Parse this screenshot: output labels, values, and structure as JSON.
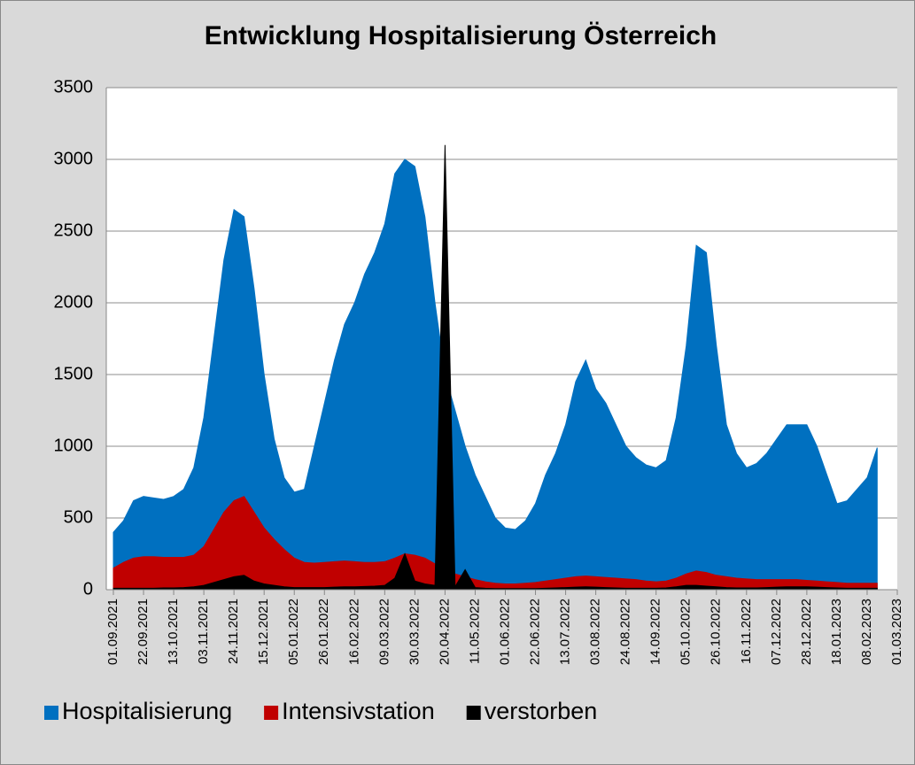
{
  "chart_data": {
    "type": "area",
    "title": "Entwicklung Hospitalisierung Österreich",
    "x": [
      "01.09.2021",
      "08.09.2021",
      "15.09.2021",
      "22.09.2021",
      "29.09.2021",
      "06.10.2021",
      "13.10.2021",
      "20.10.2021",
      "27.10.2021",
      "03.11.2021",
      "10.11.2021",
      "17.11.2021",
      "24.11.2021",
      "01.12.2021",
      "08.12.2021",
      "15.12.2021",
      "22.12.2021",
      "29.12.2021",
      "05.01.2022",
      "12.01.2022",
      "19.01.2022",
      "26.01.2022",
      "02.02.2022",
      "09.02.2022",
      "16.02.2022",
      "23.02.2022",
      "02.03.2022",
      "09.03.2022",
      "16.03.2022",
      "23.03.2022",
      "30.03.2022",
      "06.04.2022",
      "13.04.2022",
      "20.04.2022",
      "27.04.2022",
      "04.05.2022",
      "11.05.2022",
      "18.05.2022",
      "25.05.2022",
      "01.06.2022",
      "08.06.2022",
      "15.06.2022",
      "22.06.2022",
      "29.06.2022",
      "06.07.2022",
      "13.07.2022",
      "20.07.2022",
      "27.07.2022",
      "03.08.2022",
      "10.08.2022",
      "17.08.2022",
      "24.08.2022",
      "31.08.2022",
      "07.09.2022",
      "14.09.2022",
      "21.09.2022",
      "28.09.2022",
      "05.10.2022",
      "12.10.2022",
      "19.10.2022",
      "26.10.2022",
      "02.11.2022",
      "09.11.2022",
      "16.11.2022",
      "23.11.2022",
      "30.11.2022",
      "07.12.2022",
      "14.12.2022",
      "21.12.2022",
      "28.12.2022",
      "04.01.2023",
      "11.01.2023",
      "18.01.2023",
      "25.01.2023",
      "01.02.2023",
      "08.02.2023",
      "15.02.2023"
    ],
    "series": [
      {
        "name": "Hospitalisierung",
        "color": "#0070c0",
        "values": [
          400,
          480,
          620,
          650,
          640,
          630,
          650,
          700,
          850,
          1200,
          1750,
          2300,
          2650,
          2600,
          2100,
          1500,
          1050,
          780,
          680,
          700,
          1000,
          1300,
          1600,
          1850,
          2000,
          2200,
          2350,
          2550,
          2900,
          3000,
          2950,
          2600,
          2000,
          1500,
          1250,
          1000,
          800,
          650,
          500,
          430,
          420,
          480,
          600,
          800,
          950,
          1150,
          1450,
          1600,
          1400,
          1300,
          1150,
          1000,
          920,
          870,
          850,
          900,
          1200,
          1700,
          2400,
          2350,
          1700,
          1150,
          950,
          850,
          880,
          950,
          1050,
          1150,
          1150,
          1150,
          1000,
          800,
          600,
          620,
          700,
          780,
          990
        ]
      },
      {
        "name": "Intensivstation",
        "color": "#c00000",
        "values": [
          150,
          190,
          220,
          230,
          230,
          225,
          225,
          225,
          240,
          300,
          420,
          540,
          620,
          650,
          540,
          430,
          350,
          280,
          220,
          190,
          185,
          190,
          195,
          200,
          195,
          190,
          190,
          195,
          220,
          250,
          240,
          220,
          180,
          140,
          110,
          90,
          70,
          55,
          45,
          40,
          40,
          45,
          50,
          60,
          70,
          80,
          90,
          95,
          90,
          85,
          80,
          75,
          70,
          60,
          55,
          60,
          80,
          110,
          130,
          120,
          100,
          90,
          80,
          75,
          70,
          70,
          70,
          70,
          70,
          65,
          60,
          55,
          50,
          45,
          45,
          45,
          45
        ]
      },
      {
        "name": "verstorben",
        "color": "#000000",
        "values": [
          10,
          10,
          10,
          10,
          10,
          12,
          12,
          15,
          20,
          30,
          50,
          70,
          90,
          100,
          60,
          40,
          30,
          20,
          15,
          15,
          15,
          15,
          18,
          20,
          20,
          22,
          25,
          30,
          80,
          250,
          60,
          40,
          30,
          3100,
          20,
          140,
          15,
          10,
          8,
          8,
          8,
          8,
          8,
          10,
          12,
          15,
          18,
          20,
          18,
          15,
          12,
          10,
          10,
          10,
          10,
          12,
          20,
          30,
          30,
          25,
          20,
          15,
          12,
          12,
          12,
          15,
          18,
          20,
          20,
          20,
          18,
          15,
          12,
          10,
          10,
          10,
          10
        ]
      }
    ],
    "xlim": [
      "01.09.2021",
      "01.03.2023"
    ],
    "xticks": [
      "01.09.2021",
      "22.09.2021",
      "13.10.2021",
      "03.11.2021",
      "24.11.2021",
      "15.12.2021",
      "05.01.2022",
      "26.01.2022",
      "16.02.2022",
      "09.03.2022",
      "30.03.2022",
      "20.04.2022",
      "11.05.2022",
      "01.06.2022",
      "22.06.2022",
      "13.07.2022",
      "03.08.2022",
      "24.08.2022",
      "14.09.2022",
      "05.10.2022",
      "26.10.2022",
      "16.11.2022",
      "07.12.2022",
      "28.12.2022",
      "18.01.2023",
      "08.02.2023",
      "01.03.2023"
    ],
    "ylim": [
      0,
      3500
    ],
    "yticks": [
      0,
      500,
      1000,
      1500,
      2000,
      2500,
      3000,
      3500
    ],
    "grid": true,
    "legend": "bottom"
  }
}
